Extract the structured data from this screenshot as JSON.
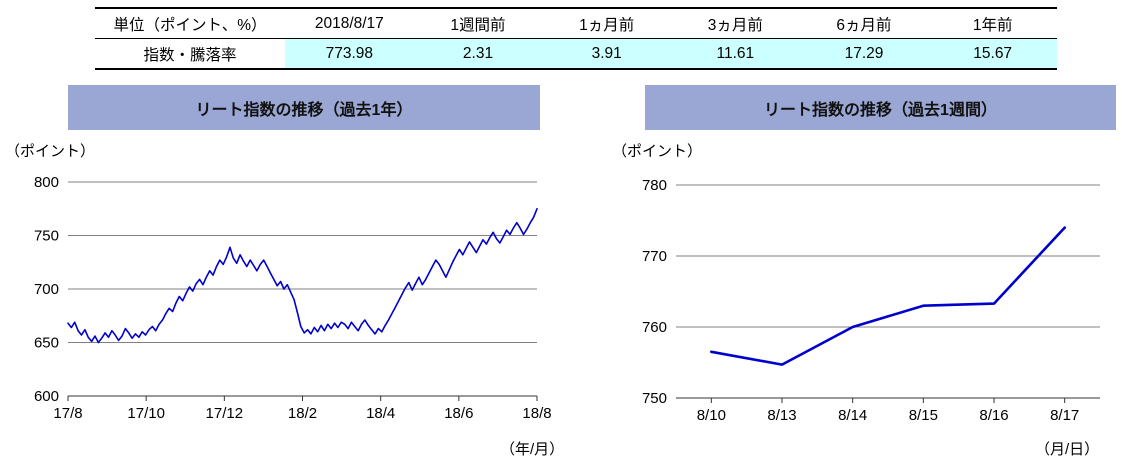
{
  "table": {
    "header": [
      "単位（ポイント、%）",
      "2018/8/17",
      "1週間前",
      "1ヵ月前",
      "3ヵ月前",
      "6ヵ月前",
      "1年前"
    ],
    "row_label": "指数・騰落率",
    "values": [
      "773.98",
      "2.31",
      "3.91",
      "11.61",
      "17.29",
      "15.67"
    ],
    "highlight_color": "#CCFFFF"
  },
  "chart_data": [
    {
      "type": "line",
      "title": "リート指数の推移（過去1年）",
      "ylabel": "（ポイント）",
      "xlabel": "（年/月）",
      "ylim": [
        600,
        800
      ],
      "yticks": [
        600,
        650,
        700,
        750,
        800
      ],
      "xticks": [
        "17/8",
        "17/10",
        "17/12",
        "18/2",
        "18/4",
        "18/6",
        "18/8"
      ],
      "band_color": "#9AA6D3",
      "line_color": "#0000CC",
      "line_width": 1.6,
      "grid": true,
      "values": [
        668,
        664,
        669,
        661,
        657,
        662,
        655,
        651,
        656,
        650,
        654,
        659,
        655,
        661,
        657,
        652,
        656,
        663,
        659,
        654,
        658,
        655,
        660,
        657,
        662,
        665,
        661,
        667,
        671,
        677,
        682,
        679,
        687,
        693,
        689,
        696,
        702,
        698,
        705,
        709,
        704,
        711,
        717,
        713,
        721,
        727,
        723,
        730,
        739,
        729,
        724,
        732,
        726,
        721,
        727,
        722,
        717,
        723,
        727,
        721,
        715,
        709,
        703,
        707,
        700,
        704,
        697,
        690,
        678,
        665,
        659,
        662,
        658,
        664,
        660,
        666,
        661,
        667,
        663,
        668,
        664,
        669,
        667,
        663,
        669,
        665,
        661,
        667,
        671,
        666,
        662,
        658,
        663,
        660,
        666,
        671,
        677,
        683,
        689,
        695,
        701,
        706,
        699,
        705,
        711,
        704,
        709,
        715,
        721,
        727,
        723,
        717,
        711,
        718,
        725,
        731,
        737,
        732,
        738,
        744,
        739,
        734,
        740,
        746,
        742,
        748,
        753,
        747,
        743,
        749,
        755,
        751,
        757,
        762,
        757,
        751,
        756,
        762,
        767,
        775
      ]
    },
    {
      "type": "line",
      "title": "リート指数の推移（過去1週間）",
      "ylabel": "（ポイント）",
      "xlabel": "（月/日）",
      "ylim": [
        750,
        780
      ],
      "yticks": [
        750,
        760,
        770,
        780
      ],
      "categories": [
        "8/10",
        "8/13",
        "8/14",
        "8/15",
        "8/16",
        "8/17"
      ],
      "band_color": "#9AA6D3",
      "line_color": "#0000CC",
      "line_width": 2.6,
      "grid": true,
      "values": [
        756.5,
        754.7,
        760.0,
        763.0,
        763.3,
        774.0
      ]
    }
  ]
}
